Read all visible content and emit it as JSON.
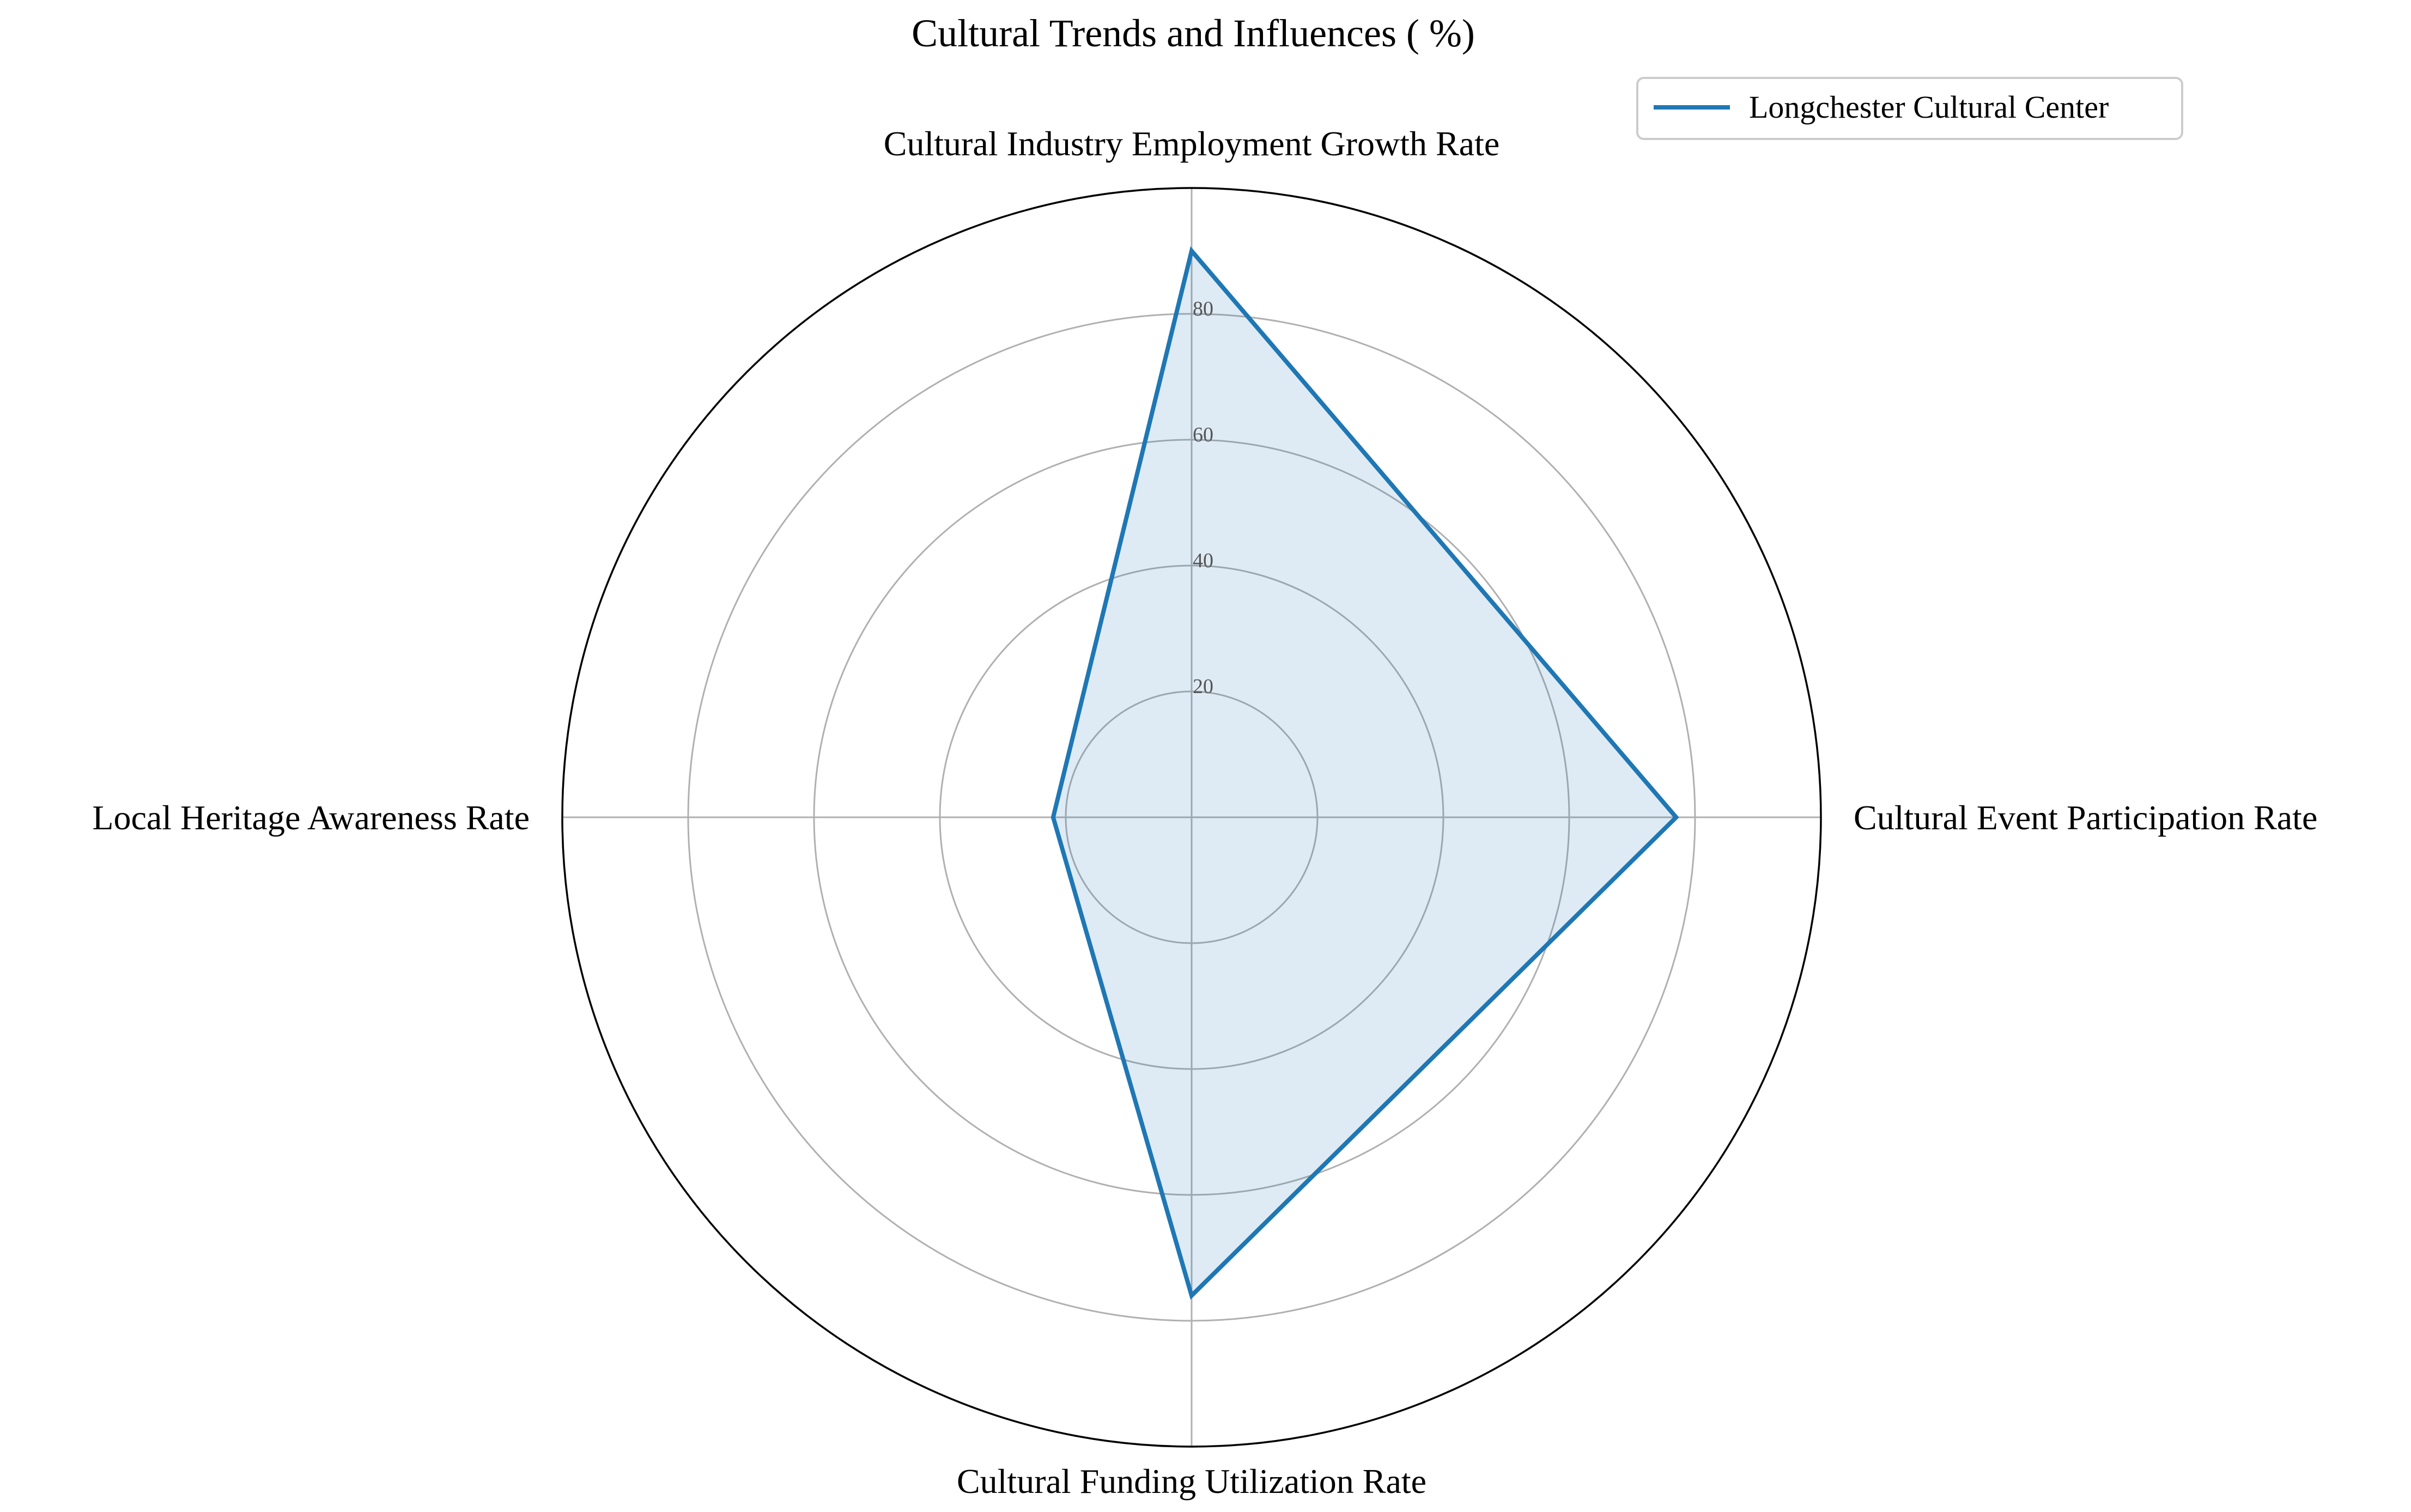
{
  "chart_data": {
    "type": "radar",
    "title": "Cultural Trends and Influences ( %)",
    "axes": [
      "Cultural Industry Employment Growth Rate",
      "Cultural Event Participation Rate",
      "Cultural Funding Utilization Rate",
      "Local Heritage Awareness Rate"
    ],
    "series": [
      {
        "name": "Longchester Cultural Center",
        "values": [
          90,
          77,
          76,
          22
        ]
      }
    ],
    "radial_ticks": [
      20,
      40,
      60,
      80
    ],
    "rlim": [
      0,
      100
    ],
    "grid": true,
    "legend": "top-right",
    "colors": {
      "series_line": "#1f77b4",
      "series_fill": "#1f77b4",
      "grid": "#b0b0b0",
      "outer_ring": "#000000",
      "tick_label": "#555555",
      "text": "#000000"
    }
  }
}
